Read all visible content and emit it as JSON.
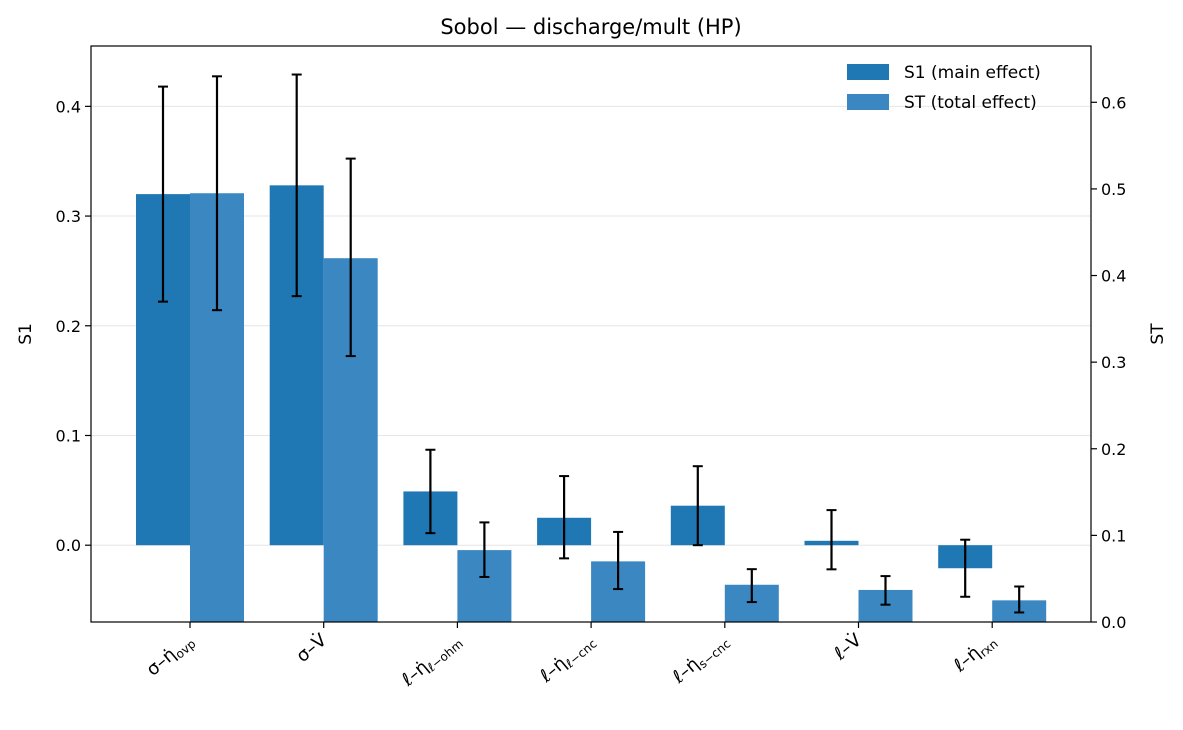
{
  "chart_data": {
    "type": "bar",
    "title": "Sobol — discharge/mult (HP)",
    "xlabel": "",
    "ylabel_left": "S1",
    "ylabel_right": "ST",
    "ylim_left": [
      -0.07,
      0.455
    ],
    "ylim_right": [
      0.0,
      0.665
    ],
    "yticks_left": [
      "0.0",
      "0.1",
      "0.2",
      "0.3",
      "0.4"
    ],
    "yticks_right": [
      "0.0",
      "0.1",
      "0.2",
      "0.3",
      "0.4",
      "0.5",
      "0.6"
    ],
    "grid": "horizontal",
    "legend_position": "top-right",
    "categories": [
      {
        "main": "σ–η̇",
        "sub": "ovp"
      },
      {
        "main": "σ–V̇",
        "sub": ""
      },
      {
        "main": "ℓ–η̇",
        "sub": "ℓ−ohm"
      },
      {
        "main": "ℓ–η̇",
        "sub": "ℓ−cnc"
      },
      {
        "main": "ℓ–η̇",
        "sub": "s−cnc"
      },
      {
        "main": "ℓ–V̇",
        "sub": ""
      },
      {
        "main": "ℓ–η̇",
        "sub": "rxn"
      }
    ],
    "series": [
      {
        "name": "S1 (main effect)",
        "axis": "left",
        "color": "#1f77b4",
        "values": [
          0.32,
          0.328,
          0.049,
          0.025,
          0.036,
          0.004,
          -0.021
        ],
        "err_low": [
          0.222,
          0.227,
          0.011,
          -0.012,
          0.0,
          -0.022,
          -0.047
        ],
        "err_high": [
          0.418,
          0.429,
          0.087,
          0.063,
          0.072,
          0.032,
          0.005
        ]
      },
      {
        "name": "ST (total effect)",
        "axis": "right",
        "color": "#3a87c1",
        "values": [
          0.495,
          0.42,
          0.083,
          0.07,
          0.043,
          0.037,
          0.025
        ],
        "err_low": [
          0.36,
          0.307,
          0.052,
          0.038,
          0.023,
          0.02,
          0.011
        ],
        "err_high": [
          0.63,
          0.535,
          0.115,
          0.104,
          0.061,
          0.053,
          0.041
        ]
      }
    ]
  }
}
